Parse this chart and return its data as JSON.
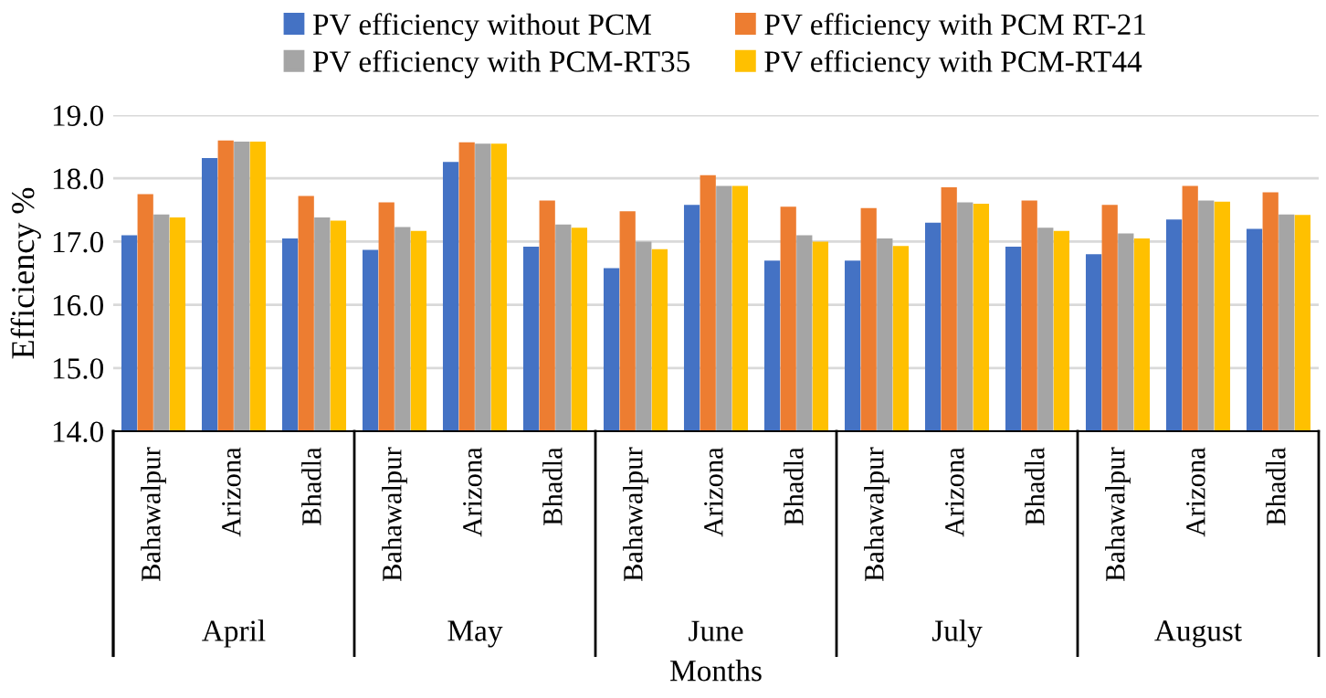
{
  "chart_data": {
    "type": "bar",
    "xlabel": "Months",
    "ylabel": "Efficiency %",
    "categories": [
      "Bahawalpur",
      "Arizona",
      "Bhadla",
      "Bahawalpur",
      "Arizona",
      "Bhadla",
      "Bahawalpur",
      "Arizona",
      "Bhadla",
      "Bahawalpur",
      "Arizona",
      "Bhadla",
      "Bahawalpur",
      "Arizona",
      "Bhadla"
    ],
    "annotations": [
      "April",
      "May",
      "June",
      "July",
      "August"
    ],
    "series": [
      {
        "name": "PV efficiency without PCM",
        "color": "#4472c4",
        "values": [
          17.1,
          18.32,
          17.05,
          16.87,
          18.26,
          16.92,
          16.58,
          17.58,
          16.7,
          16.7,
          17.3,
          16.92,
          16.8,
          17.35,
          17.2
        ]
      },
      {
        "name": "PV efficiency with PCM RT-21",
        "color": "#ed7d31",
        "values": [
          17.75,
          18.6,
          17.72,
          17.62,
          18.57,
          17.65,
          17.48,
          18.05,
          17.55,
          17.53,
          17.86,
          17.65,
          17.58,
          17.88,
          17.78
        ]
      },
      {
        "name": "PV efficiency with PCM-RT35",
        "color": "#a5a5a5",
        "values": [
          17.43,
          18.58,
          17.38,
          17.23,
          18.55,
          17.27,
          17.0,
          17.88,
          17.1,
          17.05,
          17.62,
          17.22,
          17.13,
          17.65,
          17.43
        ]
      },
      {
        "name": "PV efficiency with PCM-RT44",
        "color": "#ffc000",
        "values": [
          17.38,
          18.58,
          17.33,
          17.17,
          18.55,
          17.22,
          16.88,
          17.88,
          17.0,
          16.93,
          17.6,
          17.17,
          17.05,
          17.63,
          17.42
        ]
      }
    ],
    "ylim": [
      14.0,
      19.0
    ],
    "yticks": [
      {
        "value": 14.0,
        "label": "14.0"
      },
      {
        "value": 15.0,
        "label": "15.0"
      },
      {
        "value": 16.0,
        "label": "16.0"
      },
      {
        "value": 17.0,
        "label": "17.0"
      },
      {
        "value": 18.0,
        "label": "18.0"
      },
      {
        "value": 19.0,
        "label": "19.0"
      }
    ],
    "grid": "y",
    "legend": "top"
  }
}
